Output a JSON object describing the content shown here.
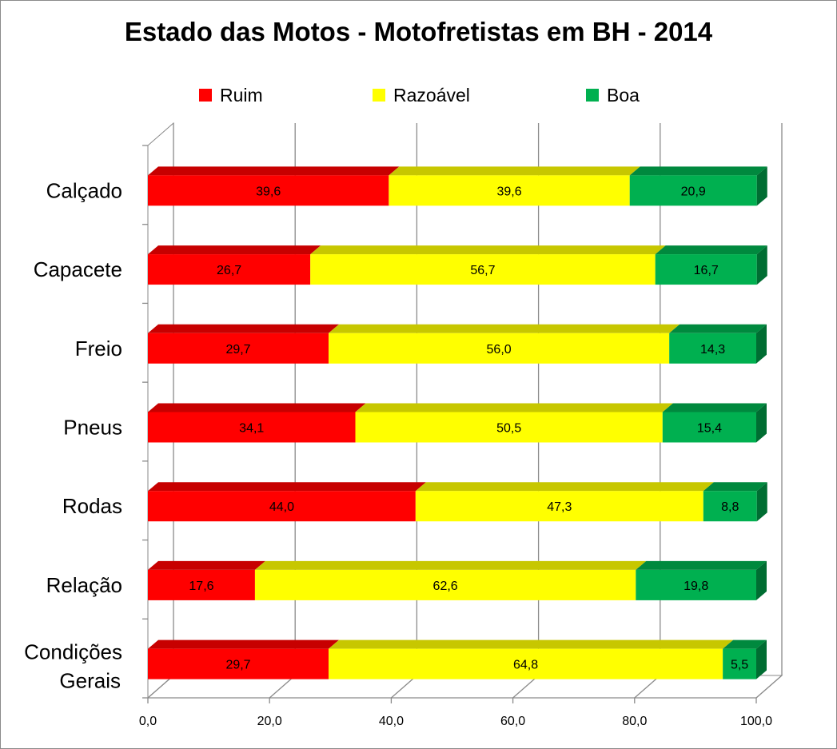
{
  "chart_data": {
    "type": "bar",
    "orientation": "horizontal",
    "stacked": true,
    "three_d": true,
    "title": "Estado das Motos - Motofretistas em BH - 2014",
    "categories": [
      "Calçado",
      "Capacete",
      "Freio",
      "Pneus",
      "Rodas",
      "Relação",
      "Condições Gerais"
    ],
    "series": [
      {
        "name": "Ruim",
        "color": "#ff0000",
        "values": [
          39.6,
          26.7,
          29.7,
          34.1,
          44.0,
          17.6,
          29.7
        ],
        "labels": [
          "39,6",
          "26,7",
          "29,7",
          "34,1",
          "44,0",
          "17,6",
          "29,7"
        ]
      },
      {
        "name": "Razoável",
        "color": "#ffff00",
        "values": [
          39.6,
          56.7,
          56.0,
          50.5,
          47.3,
          62.6,
          64.8
        ],
        "labels": [
          "39,6",
          "56,7",
          "56,0",
          "50,5",
          "47,3",
          "62,6",
          "64,8"
        ]
      },
      {
        "name": "Boa",
        "color": "#00b050",
        "values": [
          20.9,
          16.7,
          14.3,
          15.4,
          8.8,
          19.8,
          5.5
        ],
        "labels": [
          "20,9",
          "16,7",
          "14,3",
          "15,4",
          "8,8",
          "19,8",
          "5,5"
        ]
      }
    ],
    "xlim": [
      0,
      100
    ],
    "x_ticks": [
      "0,0",
      "20,0",
      "40,0",
      "60,0",
      "80,0",
      "100,0"
    ],
    "grid": true,
    "legend": "top"
  }
}
